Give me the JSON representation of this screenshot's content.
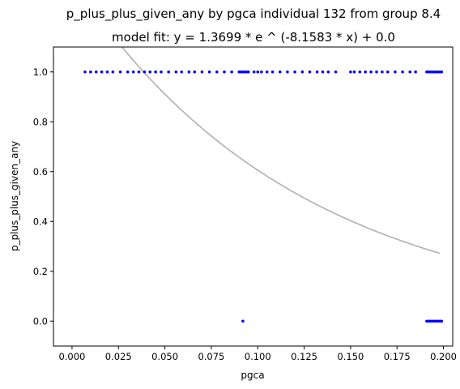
{
  "chart_data": {
    "type": "scatter",
    "title": "p_plus_plus_given_any by pgca individual 132 from group 8.4",
    "subtitle": "model fit: y = 1.3699 * e ^ (-8.1583 * x) + 0.0",
    "xlabel": "pgca",
    "ylabel": "p_plus_plus_given_any",
    "xlim": [
      -0.01,
      0.205
    ],
    "ylim": [
      -0.1,
      1.1
    ],
    "xticks": [
      0.0,
      0.025,
      0.05,
      0.075,
      0.1,
      0.125,
      0.15,
      0.175,
      0.2
    ],
    "xtick_labels": [
      "0.000",
      "0.025",
      "0.050",
      "0.075",
      "0.100",
      "0.125",
      "0.150",
      "0.175",
      "0.200"
    ],
    "yticks": [
      0.0,
      0.2,
      0.4,
      0.6,
      0.8,
      1.0
    ],
    "ytick_labels": [
      "0.0",
      "0.2",
      "0.4",
      "0.6",
      "0.8",
      "1.0"
    ],
    "grid": false,
    "colors": {
      "points": "#0000ff",
      "fit": "#b0b0b0"
    },
    "series": [
      {
        "type": "scatter",
        "x": [
          0.007,
          0.01,
          0.013,
          0.016,
          0.019,
          0.022,
          0.026,
          0.03,
          0.033,
          0.036,
          0.039,
          0.042,
          0.045,
          0.048,
          0.052,
          0.056,
          0.059,
          0.063,
          0.066,
          0.07,
          0.074,
          0.078,
          0.082,
          0.086,
          0.09,
          0.091,
          0.092,
          0.093,
          0.094,
          0.095,
          0.098,
          0.1,
          0.102,
          0.105,
          0.108,
          0.112,
          0.116,
          0.12,
          0.124,
          0.128,
          0.132,
          0.135,
          0.138,
          0.142,
          0.15,
          0.152,
          0.155,
          0.158,
          0.161,
          0.164,
          0.167,
          0.17,
          0.174,
          0.178,
          0.182,
          0.185,
          0.191,
          0.192,
          0.193,
          0.194,
          0.195,
          0.196,
          0.197,
          0.198,
          0.199,
          0.092,
          0.191,
          0.192,
          0.193,
          0.194,
          0.195,
          0.196,
          0.197,
          0.198,
          0.199
        ],
        "y": [
          1,
          1,
          1,
          1,
          1,
          1,
          1,
          1,
          1,
          1,
          1,
          1,
          1,
          1,
          1,
          1,
          1,
          1,
          1,
          1,
          1,
          1,
          1,
          1,
          1,
          1,
          1,
          1,
          1,
          1,
          1,
          1,
          1,
          1,
          1,
          1,
          1,
          1,
          1,
          1,
          1,
          1,
          1,
          1,
          1,
          1,
          1,
          1,
          1,
          1,
          1,
          1,
          1,
          1,
          1,
          1,
          1,
          1,
          1,
          1,
          1,
          1,
          1,
          1,
          1,
          0,
          0,
          0,
          0,
          0,
          0,
          0,
          0,
          0,
          0
        ]
      },
      {
        "type": "line",
        "model": {
          "a": 1.3699,
          "b": -8.1583,
          "c": 0.0
        },
        "x_range": [
          0.0,
          0.198
        ]
      }
    ]
  }
}
